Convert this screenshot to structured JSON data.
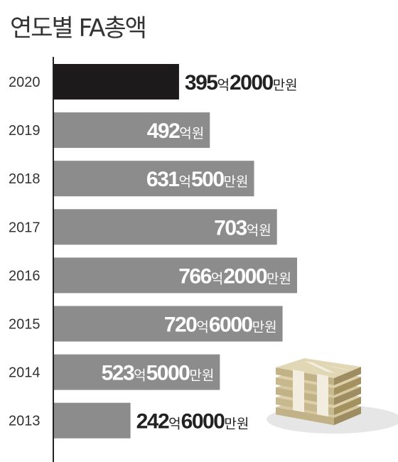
{
  "chart_data": {
    "type": "bar",
    "orientation": "horizontal",
    "title": "연도별 FA총액",
    "categories": [
      "2020",
      "2019",
      "2018",
      "2017",
      "2016",
      "2015",
      "2014",
      "2013"
    ],
    "values": [
      395.2,
      492,
      631.05,
      703,
      766.2,
      720.6,
      523.5,
      242.6
    ],
    "value_unit": "억원",
    "data_labels": [
      [
        {
          "n": "395"
        },
        {
          "u": "억"
        },
        {
          "n": "2000"
        },
        {
          "u": "만원"
        }
      ],
      [
        {
          "n": "492"
        },
        {
          "u": "억원"
        }
      ],
      [
        {
          "n": "631"
        },
        {
          "u": "억"
        },
        {
          "n": "500"
        },
        {
          "u": "만원"
        }
      ],
      [
        {
          "n": "703"
        },
        {
          "u": "억원"
        }
      ],
      [
        {
          "n": "766"
        },
        {
          "u": "억"
        },
        {
          "n": "2000"
        },
        {
          "u": "만원"
        }
      ],
      [
        {
          "n": "720"
        },
        {
          "u": "억"
        },
        {
          "n": "6000"
        },
        {
          "u": "만원"
        }
      ],
      [
        {
          "n": "523"
        },
        {
          "u": "억"
        },
        {
          "n": "5000"
        },
        {
          "u": "만원"
        }
      ],
      [
        {
          "n": "242"
        },
        {
          "u": "억"
        },
        {
          "n": "6000"
        },
        {
          "u": "만원"
        }
      ]
    ],
    "highlight_index": 0,
    "colors": {
      "highlight": "#1c1a1b",
      "bar": "#8c8c8c",
      "axis": "#222222",
      "text": "#333333",
      "label_on_bar": "#ffffff",
      "label_outside": "#222222"
    },
    "grid": false,
    "legend": "none",
    "decoration": "money-stack-icon"
  }
}
